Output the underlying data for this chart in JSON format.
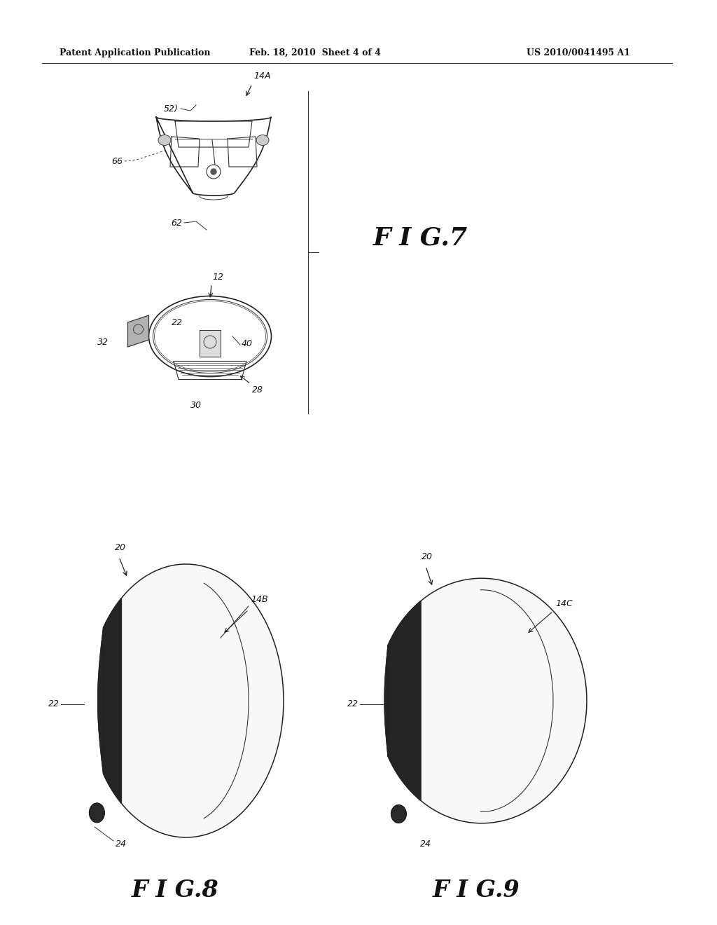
{
  "bg_color": "#ffffff",
  "text_color": "#111111",
  "header_left": "Patent Application Publication",
  "header_center": "Feb. 18, 2010  Sheet 4 of 4",
  "header_right": "US 2010/0041495 A1",
  "fig7_label": "F I G.7",
  "fig8_label": "F I G.8",
  "fig9_label": "F I G.9",
  "lw": 1.0
}
